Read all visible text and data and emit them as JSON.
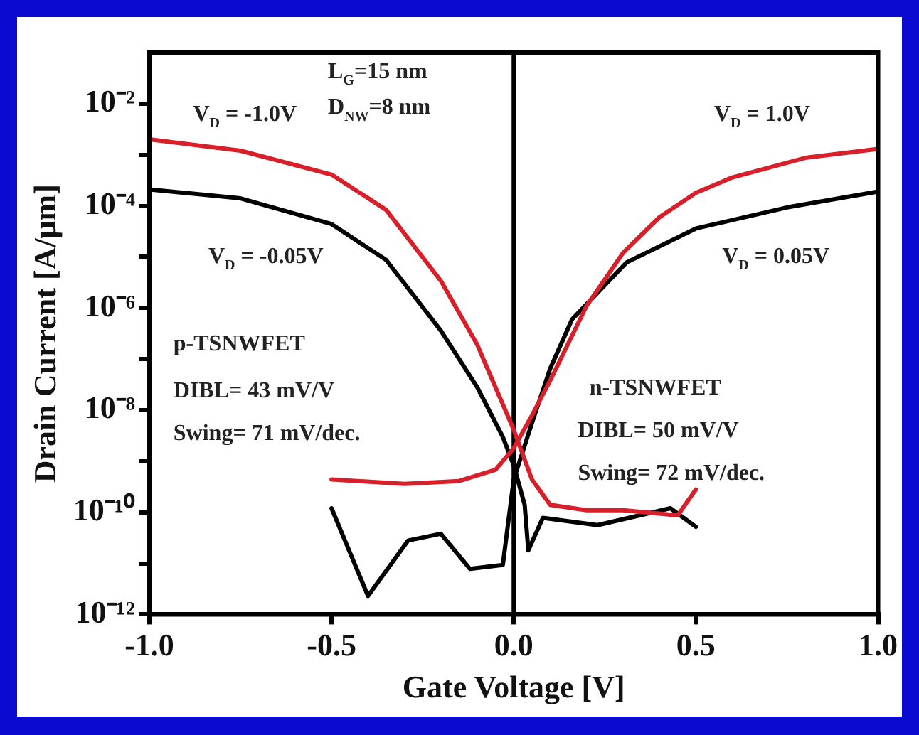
{
  "chart_data": {
    "type": "line",
    "xlabel": "Gate Voltage [V]",
    "ylabel": "Drain Current [A/μm]",
    "log": "y",
    "grid": false,
    "legend": false,
    "marker": "none",
    "line_style": "solid",
    "xlim": [
      -1.0,
      1.0
    ],
    "xticks": [
      {
        "value": -1.0,
        "label": "-1.0"
      },
      {
        "value": -0.5,
        "label": "-0.5"
      },
      {
        "value": 0.0,
        "label": "0.0"
      },
      {
        "value": 0.5,
        "label": "0.5"
      },
      {
        "value": 1.0,
        "label": "1.0"
      }
    ],
    "ylim": [
      1e-12,
      0.1
    ],
    "yticks": [
      {
        "value": 1e-12,
        "label": "10⁻¹²"
      },
      {
        "value": 1e-11,
        "label": null
      },
      {
        "value": 1e-10,
        "label": "10⁻¹⁰"
      },
      {
        "value": 1e-09,
        "label": null
      },
      {
        "value": 1e-08,
        "label": "10⁻⁸"
      },
      {
        "value": 1e-07,
        "label": null
      },
      {
        "value": 1e-06,
        "label": "10⁻⁶"
      },
      {
        "value": 1e-05,
        "label": null
      },
      {
        "value": 0.0001,
        "label": "10⁻⁴"
      },
      {
        "value": 0.001,
        "label": null
      },
      {
        "value": 0.01,
        "label": "10⁻²"
      }
    ],
    "ref_lines": [
      {
        "axis": "x",
        "value": 0.0,
        "color": "#000000"
      }
    ],
    "series": [
      {
        "color": "#d81f2a",
        "x": [
          -1.0,
          -0.75,
          -0.5,
          -0.35,
          -0.2,
          -0.1,
          0.0,
          0.05,
          0.1,
          0.2,
          0.3,
          0.45,
          0.5
        ],
        "values": [
          0.002,
          0.0012,
          0.00041,
          8.3e-05,
          3.4e-06,
          1.9e-07,
          4.1e-09,
          4.4e-10,
          1.4e-10,
          1.1e-10,
          1.1e-10,
          8.7e-11,
          2.8e-10
        ]
      },
      {
        "color": "#d81f2a",
        "x": [
          -0.5,
          -0.3,
          -0.15,
          -0.05,
          0.0,
          0.05,
          0.1,
          0.2,
          0.3,
          0.4,
          0.5,
          0.6,
          0.8,
          1.0
        ],
        "values": [
          4.4e-10,
          3.6e-10,
          4.1e-10,
          6.8e-10,
          1.8e-09,
          7.9e-09,
          3.8e-08,
          1.1e-06,
          1.2e-05,
          6e-05,
          0.00018,
          0.00036,
          0.00087,
          0.0013
        ]
      },
      {
        "color": "#000000",
        "x": [
          -1.0,
          -0.75,
          -0.5,
          -0.35,
          -0.2,
          -0.1,
          -0.03,
          0.0,
          0.03,
          0.04,
          0.08,
          0.23,
          0.43,
          0.5
        ],
        "values": [
          0.00021,
          0.00014,
          4.4e-05,
          8.7e-06,
          3.6e-07,
          2.8e-08,
          3e-09,
          8.3e-10,
          1.4e-10,
          1.8e-11,
          7.8e-11,
          5.6e-11,
          1.2e-10,
          5.2e-11
        ]
      },
      {
        "color": "#000000",
        "x": [
          -0.5,
          -0.4,
          -0.29,
          -0.2,
          -0.12,
          -0.03,
          0.0,
          0.05,
          0.1,
          0.16,
          0.31,
          0.5,
          0.75,
          1.0
        ],
        "values": [
          1.2e-10,
          2.3e-12,
          2.8e-11,
          3.8e-11,
          7.8e-12,
          9.3e-12,
          4.4e-10,
          5.6e-09,
          6.5e-08,
          6e-07,
          7.8e-06,
          3.6e-05,
          9.3e-05,
          0.00019
        ]
      }
    ],
    "annotations": [
      "L$_{G}$=15 nm",
      "D$_{NW}$=8 nm",
      "V$_{D}$ = -1.0V",
      "V$_{D}$ = -0.05V",
      "V$_{D}$ = 1.0V",
      "V$_{D}$ = 0.05V",
      "p-TSNWFET",
      "DIBL= 43 mV/V",
      "Swing= 71 mV/dec.",
      "n-TSNWFET",
      "DIBL= 50 mV/V",
      "Swing= 72 mV/dec."
    ]
  }
}
